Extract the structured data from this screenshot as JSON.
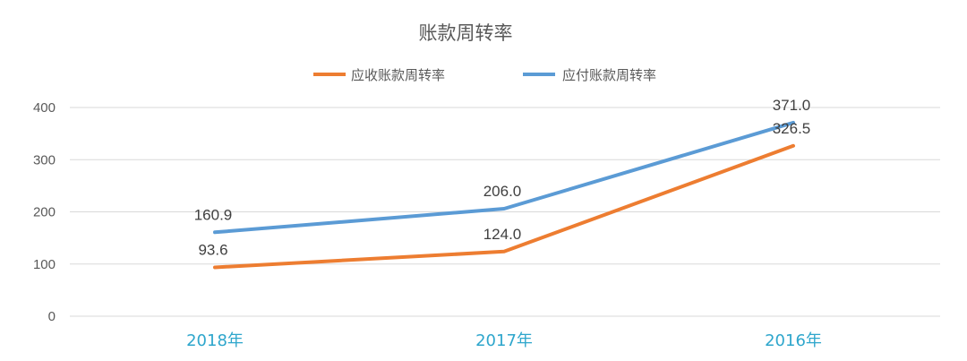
{
  "chart_data": {
    "type": "line",
    "title": "账款周转率",
    "categories": [
      "2018年",
      "2017年",
      "2016年"
    ],
    "series": [
      {
        "name": "应收账款周转率",
        "values": [
          93.6,
          124.0,
          326.5
        ],
        "color": "#ED7D31"
      },
      {
        "name": "应付账款周转率",
        "values": [
          160.9,
          206.0,
          371.0
        ],
        "color": "#5B9BD5"
      }
    ],
    "ylim": [
      0,
      400
    ],
    "yticks": [
      0,
      100,
      200,
      300,
      400
    ],
    "xtick_color": "#2EA6CC",
    "grid": true,
    "legend": "top-center"
  }
}
